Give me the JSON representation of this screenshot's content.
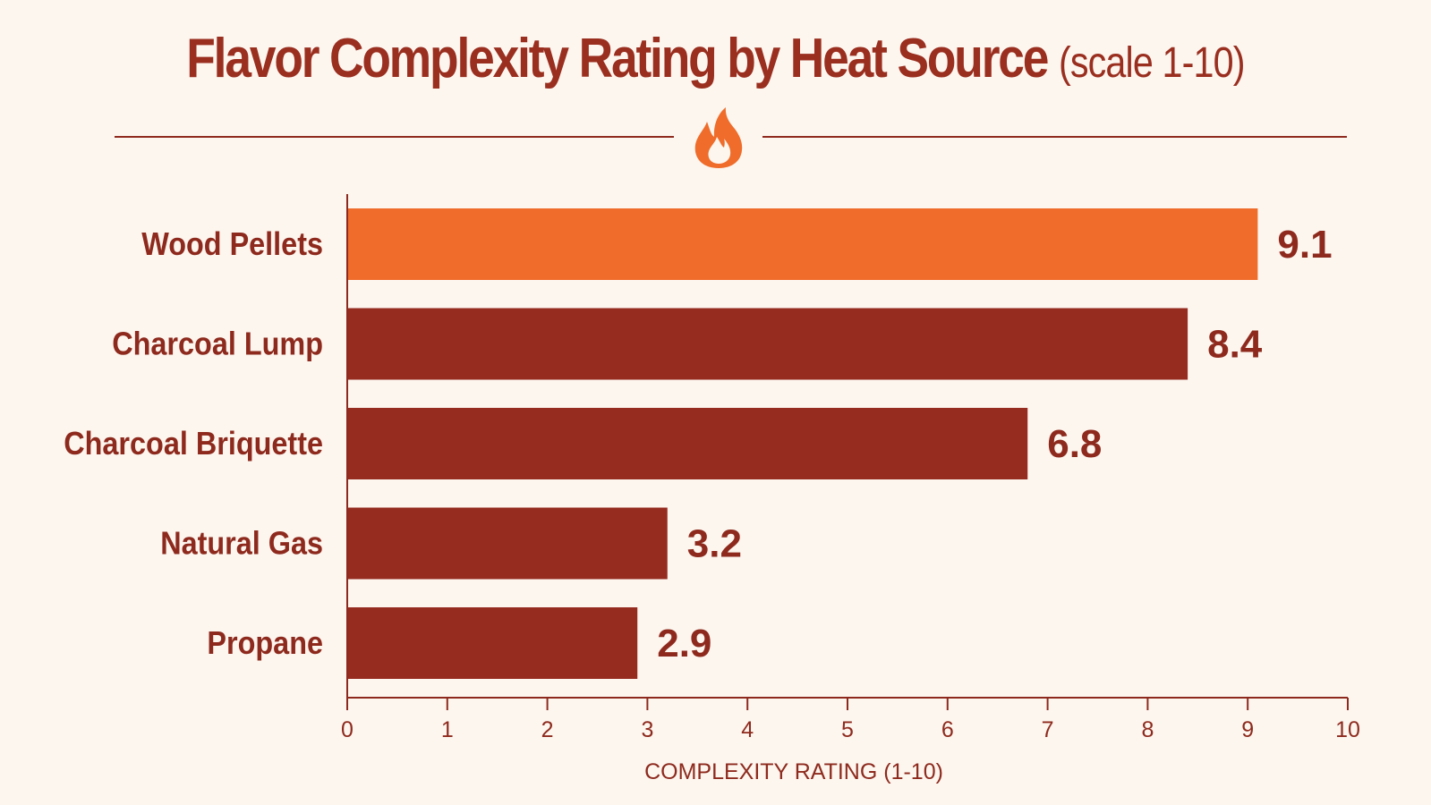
{
  "chart_data": {
    "type": "bar",
    "orientation": "horizontal",
    "title": "Flavor Complexity Rating by Heat Source",
    "subtitle": "(scale 1-10)",
    "xlabel": "COMPLEXITY RATING (1-10)",
    "ylabel": "",
    "xlim": [
      0,
      10
    ],
    "x_ticks": [
      "0",
      "1",
      "2",
      "3",
      "4",
      "5",
      "6",
      "7",
      "8",
      "9",
      "10"
    ],
    "categories": [
      "Wood Pellets",
      "Charcoal Lump",
      "Charcoal Briquette",
      "Natural Gas",
      "Propane"
    ],
    "values": [
      9.1,
      8.4,
      6.8,
      3.2,
      2.9
    ],
    "value_labels": [
      "9.1",
      "8.4",
      "6.8",
      "3.2",
      "2.9"
    ],
    "highlight_index": 0,
    "grid": false,
    "legend": "none",
    "colors": {
      "highlight": "#ef6c2a",
      "bar": "#962b1f",
      "text": "#8e2a1d",
      "axis": "#8e2a1d",
      "background": "#fcf6ef"
    },
    "decoration_icon": "flame-icon"
  }
}
